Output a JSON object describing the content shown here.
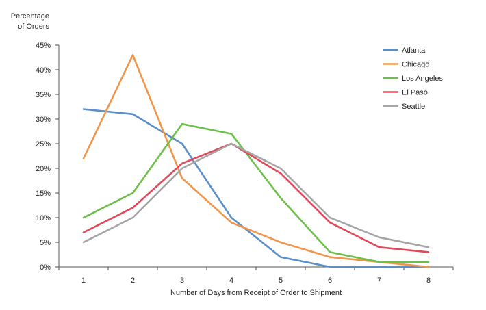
{
  "chart_data": {
    "type": "line",
    "title": "",
    "ylabel": [
      "Percentage",
      "of Orders"
    ],
    "xlabel": "Number of Days  from Receipt  of Order to Shipment",
    "x": [
      1,
      2,
      3,
      4,
      5,
      6,
      7,
      8
    ],
    "xlim": [
      0.5,
      8.5
    ],
    "ylim": [
      0,
      45
    ],
    "yticks": [
      0,
      5,
      10,
      15,
      20,
      25,
      30,
      35,
      40,
      45
    ],
    "ytick_labels": [
      "0%",
      "5%",
      "10%",
      "15%",
      "20%",
      "25%",
      "30%",
      "35%",
      "40%",
      "45%"
    ],
    "xtick_labels": [
      "1",
      "2",
      "3",
      "4",
      "5",
      "6",
      "7",
      "8"
    ],
    "grid": false,
    "legend_position": "top-right",
    "series": [
      {
        "name": "Atlanta",
        "color": "#5b8fc9",
        "values": [
          32,
          31,
          25,
          10,
          2,
          0,
          0,
          0
        ]
      },
      {
        "name": "Chicago",
        "color": "#f0954a",
        "values": [
          22,
          43,
          18,
          9,
          5,
          2,
          1,
          0
        ]
      },
      {
        "name": "Los Angeles",
        "color": "#6dbf4b",
        "values": [
          10,
          15,
          29,
          27,
          14,
          3,
          1,
          1
        ]
      },
      {
        "name": "El Paso",
        "color": "#e0495a",
        "values": [
          7,
          12,
          21,
          25,
          19,
          9,
          4,
          3
        ]
      },
      {
        "name": "Seattle",
        "color": "#a6a6a6",
        "values": [
          5,
          10,
          20,
          25,
          20,
          10,
          6,
          4
        ]
      }
    ]
  }
}
